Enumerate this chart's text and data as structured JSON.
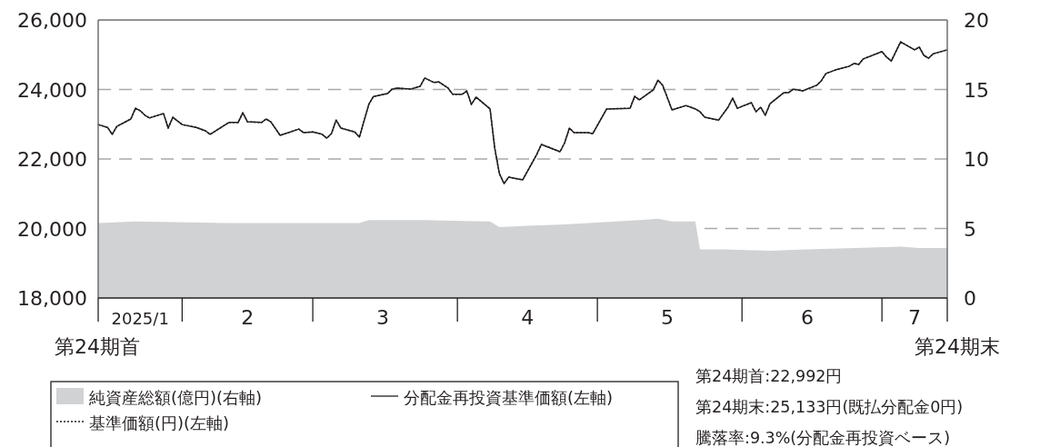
{
  "chart_data": {
    "type": "line",
    "x": [
      "2025-01-14",
      "2025-01-16",
      "2025-01-17",
      "2025-01-18",
      "2025-01-21",
      "2025-01-22",
      "2025-01-23",
      "2025-01-24",
      "2025-01-25",
      "2025-01-28",
      "2025-01-29",
      "2025-01-30",
      "2025-02-01",
      "2025-02-04",
      "2025-02-06",
      "2025-02-07",
      "2025-02-11",
      "2025-02-13",
      "2025-02-14",
      "2025-02-15",
      "2025-02-18",
      "2025-02-19",
      "2025-02-20",
      "2025-02-22",
      "2025-02-26",
      "2025-02-27",
      "2025-03-01",
      "2025-03-03",
      "2025-03-04",
      "2025-03-05",
      "2025-03-06",
      "2025-03-07",
      "2025-03-10",
      "2025-03-11",
      "2025-03-13",
      "2025-03-14",
      "2025-03-17",
      "2025-03-18",
      "2025-03-19",
      "2025-03-22",
      "2025-03-24",
      "2025-03-25",
      "2025-03-27",
      "2025-03-28",
      "2025-03-30",
      "2025-03-31",
      "2025-04-02",
      "2025-04-03",
      "2025-04-04",
      "2025-04-05",
      "2025-04-08",
      "2025-04-09",
      "2025-04-10",
      "2025-04-11",
      "2025-04-12",
      "2025-04-15",
      "2025-04-18",
      "2025-04-19",
      "2025-04-23",
      "2025-04-24",
      "2025-04-25",
      "2025-04-26",
      "2025-04-29",
      "2025-04-30",
      "2025-05-03",
      "2025-05-08",
      "2025-05-09",
      "2025-05-10",
      "2025-05-13",
      "2025-05-14",
      "2025-05-15",
      "2025-05-17",
      "2025-05-20",
      "2025-05-22",
      "2025-05-23",
      "2025-05-24",
      "2025-05-27",
      "2025-05-29",
      "2025-05-30",
      "2025-05-31",
      "2025-06-03",
      "2025-06-04",
      "2025-06-05",
      "2025-06-06",
      "2025-06-07",
      "2025-06-10",
      "2025-06-11",
      "2025-06-12",
      "2025-06-14",
      "2025-06-17",
      "2025-06-18",
      "2025-06-19",
      "2025-06-21",
      "2025-06-24",
      "2025-06-25",
      "2025-06-26",
      "2025-06-27",
      "2025-07-01",
      "2025-07-02",
      "2025-07-03",
      "2025-07-05",
      "2025-07-08",
      "2025-07-09",
      "2025-07-10",
      "2025-07-11",
      "2025-07-12",
      "2025-07-15"
    ],
    "series": [
      {
        "name": "純資産総額(億円)(右軸)",
        "type": "area",
        "axis": "y2",
        "color": "#d1d2d4",
        "x": [
          "2025-01-14",
          "2025-01-22",
          "2025-02-11",
          "2025-02-20",
          "2025-03-11",
          "2025-03-13",
          "2025-03-25",
          "2025-04-08",
          "2025-04-10",
          "2025-04-16",
          "2025-04-24",
          "2025-05-10",
          "2025-05-14",
          "2025-05-17",
          "2025-05-22",
          "2025-05-23",
          "2025-05-28",
          "2025-06-07",
          "2025-06-15",
          "2025-07-05",
          "2025-07-09",
          "2025-07-15"
        ],
        "values": [
          5.4,
          5.5,
          5.4,
          5.4,
          5.4,
          5.6,
          5.6,
          5.5,
          5.1,
          5.2,
          5.3,
          5.6,
          5.7,
          5.5,
          5.5,
          3.5,
          3.5,
          3.4,
          3.5,
          3.7,
          3.6,
          3.6
        ]
      },
      {
        "name": "分配金再投資基準価額(左軸)",
        "color": "#231f20",
        "values": [
          22990,
          22910,
          22710,
          22940,
          23150,
          23460,
          23390,
          23260,
          23180,
          23310,
          22890,
          23200,
          22990,
          22910,
          22810,
          22710,
          23050,
          23050,
          23330,
          23070,
          23050,
          23150,
          23070,
          22680,
          22860,
          22760,
          22780,
          22710,
          22600,
          22730,
          23120,
          22890,
          22780,
          22630,
          23570,
          23800,
          23880,
          24010,
          24040,
          24010,
          24090,
          24330,
          24200,
          24220,
          24040,
          23860,
          23860,
          23960,
          23570,
          23780,
          23440,
          22310,
          21580,
          21290,
          21480,
          21400,
          22130,
          22420,
          22210,
          22470,
          22890,
          22760,
          22760,
          22730,
          23440,
          23460,
          23800,
          23700,
          23990,
          24270,
          24120,
          23410,
          23540,
          23440,
          23360,
          23200,
          23120,
          23490,
          23750,
          23460,
          23620,
          23360,
          23490,
          23260,
          23590,
          23910,
          23910,
          24010,
          23960,
          24120,
          24250,
          24460,
          24560,
          24670,
          24750,
          24720,
          24880,
          25090,
          24930,
          24820,
          25370,
          25140,
          25220,
          24980,
          24900,
          25030,
          25140
        ]
      },
      {
        "name": "基準価額(円)(左軸)",
        "color": "#231f20",
        "line_style": "dotted",
        "values": [
          22990,
          22910,
          22710,
          22940,
          23150,
          23460,
          23390,
          23260,
          23180,
          23310,
          22890,
          23200,
          22990,
          22910,
          22810,
          22710,
          23050,
          23050,
          23330,
          23070,
          23050,
          23150,
          23070,
          22680,
          22860,
          22760,
          22780,
          22710,
          22600,
          22730,
          23120,
          22890,
          22780,
          22630,
          23570,
          23800,
          23880,
          24010,
          24040,
          24010,
          24090,
          24330,
          24200,
          24220,
          24040,
          23860,
          23860,
          23960,
          23570,
          23780,
          23440,
          22310,
          21580,
          21290,
          21480,
          21400,
          22130,
          22420,
          22210,
          22470,
          22890,
          22760,
          22760,
          22730,
          23440,
          23460,
          23800,
          23700,
          23990,
          24270,
          24120,
          23410,
          23540,
          23440,
          23360,
          23200,
          23120,
          23490,
          23750,
          23460,
          23620,
          23360,
          23490,
          23260,
          23590,
          23910,
          23910,
          24010,
          23960,
          24120,
          24250,
          24460,
          24560,
          24670,
          24750,
          24720,
          24880,
          25090,
          24930,
          24820,
          25370,
          25140,
          25220,
          24980,
          24900,
          25030,
          25140
        ]
      }
    ],
    "xlim": [
      "2025-01-14",
      "2025-07-15"
    ],
    "xticks": [
      {
        "value": "2025-01-23",
        "label": "2025/1"
      },
      {
        "value": "2025-02-01",
        "label": null
      },
      {
        "value": "2025-02-15",
        "label": "2"
      },
      {
        "value": "2025-03-01",
        "label": null
      },
      {
        "value": "2025-03-16",
        "label": "3"
      },
      {
        "value": "2025-04-01",
        "label": null
      },
      {
        "value": "2025-04-16",
        "label": "4"
      },
      {
        "value": "2025-05-01",
        "label": null
      },
      {
        "value": "2025-05-16",
        "label": "5"
      },
      {
        "value": "2025-06-01",
        "label": null
      },
      {
        "value": "2025-06-15",
        "label": "6"
      },
      {
        "value": "2025-07-01",
        "label": null
      },
      {
        "value": "2025-07-08",
        "label": "7"
      }
    ],
    "ylim": [
      18000,
      26000
    ],
    "yticks": [
      {
        "value": 18000,
        "label": "18,000"
      },
      {
        "value": 20000,
        "label": "20,000"
      },
      {
        "value": 22000,
        "label": "22,000"
      },
      {
        "value": 24000,
        "label": "24,000"
      },
      {
        "value": 26000,
        "label": "26,000"
      }
    ],
    "y2lim": [
      0,
      20
    ],
    "y2ticks": [
      0,
      5,
      10,
      15,
      20
    ],
    "grid": "y",
    "legend": "bottom",
    "annotations": [
      {
        "text": "第24期首",
        "x": "2025-01-14"
      },
      {
        "text": "第24期末",
        "x": "2025-07-15"
      },
      "第24期首:22,992円",
      "第24期末:25,133円(既払分配金0円)",
      "騰落率:9.3%(分配金再投資ベース)"
    ]
  }
}
